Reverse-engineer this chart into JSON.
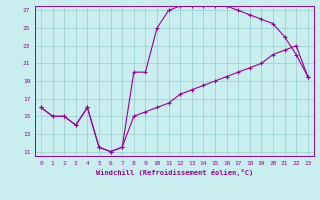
{
  "xlabel": "Windchill (Refroidissement éolien,°C)",
  "xlim": [
    -0.5,
    23.5
  ],
  "ylim": [
    10.5,
    27.5
  ],
  "xticks": [
    0,
    1,
    2,
    3,
    4,
    5,
    6,
    7,
    8,
    9,
    10,
    11,
    12,
    13,
    14,
    15,
    16,
    17,
    18,
    19,
    20,
    21,
    22,
    23
  ],
  "yticks": [
    11,
    13,
    15,
    17,
    19,
    21,
    23,
    25,
    27
  ],
  "bg_color": "#c8eef0",
  "grid_color": "#99cccc",
  "line_color": "#990099",
  "curve1_x": [
    0,
    1,
    2,
    3,
    4,
    5,
    6,
    7,
    8,
    9,
    10,
    11,
    12,
    13,
    14,
    15,
    16,
    17,
    18,
    19,
    20,
    21,
    22,
    23
  ],
  "curve1_y": [
    16,
    15,
    15,
    14,
    16,
    11.5,
    11,
    11.5,
    20,
    20,
    25,
    27,
    27.5,
    27.5,
    27.5,
    27.5,
    27.5,
    27,
    26.5,
    26,
    25.5,
    24,
    22,
    19.5
  ],
  "curve2_x": [
    0,
    1,
    2,
    3,
    4,
    5,
    6,
    7,
    8,
    9,
    10,
    11,
    12,
    13,
    14,
    15,
    16,
    17,
    18,
    19,
    20,
    21,
    22,
    23
  ],
  "curve2_y": [
    16,
    15,
    15,
    14,
    16,
    11.5,
    11,
    11.5,
    15,
    15.5,
    16,
    16.5,
    17.5,
    18,
    18.5,
    19,
    19.5,
    20,
    20.5,
    21,
    22,
    22.5,
    23,
    19.5
  ]
}
